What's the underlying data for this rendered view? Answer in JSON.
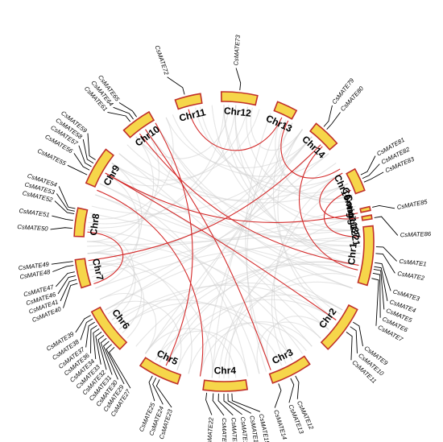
{
  "colors": {
    "chromosome_fill": "#f6d64a",
    "chromosome_border": "#c0302a",
    "collinear_gray": "#cfcfcf",
    "mate_pair_red": "#d42a2a"
  },
  "chromosomes": [
    {
      "label": "Chr1",
      "start": 84,
      "end": 107
    },
    {
      "label": "Chr2",
      "start": 117,
      "end": 136
    },
    {
      "label": "Chr3",
      "start": 145,
      "end": 161
    },
    {
      "label": "Chr4",
      "start": 171,
      "end": 188
    },
    {
      "label": "Chr5",
      "start": 198,
      "end": 214
    },
    {
      "label": "Chr6",
      "start": 224,
      "end": 242
    },
    {
      "label": "Chr7",
      "start": 252,
      "end": 263
    },
    {
      "label": "Chr8",
      "start": 272,
      "end": 283
    },
    {
      "label": "Chr9",
      "start": 293,
      "end": 308
    },
    {
      "label": "Chr10",
      "start": 318,
      "end": 330
    },
    {
      "label": "Chr11",
      "start": 341,
      "end": 351
    },
    {
      "label": "Chr12",
      "start": 359,
      "end": 373
    },
    {
      "label": "Chr13",
      "start": 381,
      "end": 389
    },
    {
      "label": "Chr14",
      "start": 398,
      "end": 409
    },
    {
      "label": "Chr15",
      "start": 421,
      "end": 430
    },
    {
      "label": "Contig1187",
      "start": 436.5,
      "end": 438
    },
    {
      "label": "Contig1221",
      "start": 439.8,
      "end": 441.3
    }
  ],
  "genes": [
    {
      "name": "CsMATE1",
      "angle": 92,
      "target": 96.5
    },
    {
      "name": "CsMATE2",
      "angle": 94.5,
      "target": 100.5
    },
    {
      "name": "CsMATE3",
      "angle": 98,
      "target": 106.5
    },
    {
      "name": "CsMATE4",
      "angle": 99.5,
      "target": 110
    },
    {
      "name": "CsMATE5",
      "angle": 100.5,
      "target": 113
    },
    {
      "name": "CsMATE6",
      "angle": 102,
      "target": 116
    },
    {
      "name": "CsMATE7",
      "angle": 104,
      "target": 119
    },
    {
      "name": "CsMATE9",
      "angle": 122,
      "target": 127
    },
    {
      "name": "CsMATE10",
      "angle": 124,
      "target": 130
    },
    {
      "name": "CsMATE11",
      "angle": 126.5,
      "target": 133
    },
    {
      "name": "CsMATE12",
      "angle": 152,
      "target": 155
    },
    {
      "name": "CsMATE13",
      "angle": 154,
      "target": 158
    },
    {
      "name": "CsMATE14",
      "angle": 159,
      "target": 163
    },
    {
      "name": "CsMATE15",
      "angle": 177,
      "target": 168
    },
    {
      "name": "CsMATE16",
      "angle": 178.5,
      "target": 171
    },
    {
      "name": "CsMATE17",
      "angle": 180,
      "target": 174
    },
    {
      "name": "CsMATE20",
      "angle": 182,
      "target": 177
    },
    {
      "name": "CsMATE21",
      "angle": 184,
      "target": 180
    },
    {
      "name": "CsMATE22",
      "angle": 186.5,
      "target": 184
    },
    {
      "name": "CsMATE23",
      "angle": 205,
      "target": 197.5
    },
    {
      "name": "CsMATE24",
      "angle": 206.5,
      "target": 200.5
    },
    {
      "name": "CsMATE25",
      "angle": 208,
      "target": 203.5
    },
    {
      "name": "CsMATE27",
      "angle": 226,
      "target": 212.5
    },
    {
      "name": "CsMATE29",
      "angle": 227.5,
      "target": 215
    },
    {
      "name": "CsMATE30",
      "angle": 229,
      "target": 217.5
    },
    {
      "name": "CsMATE31",
      "angle": 230.5,
      "target": 220
    },
    {
      "name": "CsMATE32",
      "angle": 232,
      "target": 222.5
    },
    {
      "name": "CsMATE33",
      "angle": 233.5,
      "target": 225
    },
    {
      "name": "CsMATE34",
      "angle": 235,
      "target": 227.5
    },
    {
      "name": "CsMATE36",
      "angle": 236.5,
      "target": 230
    },
    {
      "name": "CsMATE37",
      "angle": 238,
      "target": 232.5
    },
    {
      "name": "CsMATE38",
      "angle": 239.5,
      "target": 235.5
    },
    {
      "name": "CsMATE39",
      "angle": 241,
      "target": 238.5
    },
    {
      "name": "CsMATE40",
      "angle": 254,
      "target": 247.5
    },
    {
      "name": "CsMATE41",
      "angle": 255.5,
      "target": 250
    },
    {
      "name": "CsMATE46",
      "angle": 257,
      "target": 252.5
    },
    {
      "name": "CsMATE47",
      "angle": 258.5,
      "target": 255
    },
    {
      "name": "CsMATE48",
      "angle": 261,
      "target": 260
    },
    {
      "name": "CsMATE49",
      "angle": 262.5,
      "target": 262.5
    },
    {
      "name": "CsMATE50",
      "angle": 275,
      "target": 274
    },
    {
      "name": "CsMATE51",
      "angle": 278,
      "target": 278.5
    },
    {
      "name": "CsMATE52",
      "angle": 280.5,
      "target": 283.5
    },
    {
      "name": "CsMATE53",
      "angle": 281.5,
      "target": 286
    },
    {
      "name": "CsMATE54",
      "angle": 282.5,
      "target": 288.5
    },
    {
      "name": "CsMATE55",
      "angle": 296,
      "target": 296
    },
    {
      "name": "CsMATE56",
      "angle": 298,
      "target": 300.5
    },
    {
      "name": "CsMATE57",
      "angle": 299.5,
      "target": 303.5
    },
    {
      "name": "CsMATE58",
      "angle": 301,
      "target": 306
    },
    {
      "name": "CsMATE59",
      "angle": 302.5,
      "target": 308.5
    },
    {
      "name": "CsMATE61",
      "angle": 322,
      "target": 318
    },
    {
      "name": "CsMATE64",
      "angle": 323.5,
      "target": 320.5
    },
    {
      "name": "CsMATE65",
      "angle": 325,
      "target": 323
    },
    {
      "name": "CsMATE72",
      "angle": 345,
      "target": 341
    },
    {
      "name": "CsMATE73",
      "angle": 366,
      "target": 364
    },
    {
      "name": "CsMATE79",
      "angle": 401,
      "target": 398.5
    },
    {
      "name": "CsMATE80",
      "angle": 402.5,
      "target": 402
    },
    {
      "name": "CsMATE81",
      "angle": 424,
      "target": 420.5
    },
    {
      "name": "CsMATE82",
      "angle": 425.5,
      "target": 423.5
    },
    {
      "name": "CsMATE83",
      "angle": 427,
      "target": 426.5
    },
    {
      "name": "CsMATE85",
      "angle": 437,
      "target": 439
    },
    {
      "name": "CsMATE86",
      "angle": 441,
      "target": 448
    }
  ],
  "red_links": [
    [
      428,
      448
    ],
    [
      345,
      385
    ],
    [
      300,
      485
    ],
    [
      405,
      262
    ],
    [
      325,
      520
    ],
    [
      292,
      550
    ],
    [
      438,
      300
    ],
    [
      440,
      420
    ],
    [
      322,
      460
    ],
    [
      330,
      565
    ],
    [
      274,
      252
    ],
    [
      388,
      418
    ],
    [
      406,
      462
    ]
  ],
  "gray_links": [
    [
      370,
      430
    ],
    [
      372,
      395
    ],
    [
      290,
      470
    ],
    [
      295,
      480
    ],
    [
      282,
      465
    ],
    [
      325,
      445
    ],
    [
      330,
      455
    ],
    [
      335,
      400
    ],
    [
      338,
      410
    ],
    [
      265,
      440
    ],
    [
      268,
      445
    ],
    [
      255,
      435
    ],
    [
      310,
      420
    ],
    [
      315,
      425
    ],
    [
      285,
      400
    ],
    [
      230,
      480
    ],
    [
      233,
      485
    ],
    [
      205,
      455
    ],
    [
      208,
      460
    ],
    [
      178,
      440
    ],
    [
      182,
      448
    ],
    [
      150,
      420
    ],
    [
      153,
      425
    ],
    [
      122,
      390
    ],
    [
      125,
      395
    ],
    [
      95,
      355
    ],
    [
      97,
      360
    ],
    [
      100,
      365
    ],
    [
      160,
      380
    ],
    [
      162,
      385
    ],
    [
      185,
      390
    ],
    [
      190,
      395
    ],
    [
      210,
      400
    ],
    [
      215,
      405
    ],
    [
      240,
      410
    ],
    [
      245,
      415
    ],
    [
      258,
      395
    ],
    [
      260,
      400
    ],
    [
      276,
      360
    ],
    [
      278,
      365
    ],
    [
      300,
      370
    ],
    [
      305,
      375
    ],
    [
      320,
      362
    ],
    [
      90,
      300
    ],
    [
      92,
      305
    ],
    [
      105,
      320
    ],
    [
      110,
      330
    ],
    [
      130,
      300
    ],
    [
      135,
      310
    ],
    [
      140,
      270
    ],
    [
      145,
      275
    ],
    [
      165,
      290
    ],
    [
      170,
      295
    ],
    [
      185,
      260
    ],
    [
      195,
      265
    ],
    [
      200,
      240
    ],
    [
      215,
      245
    ],
    [
      235,
      270
    ],
    [
      238,
      275
    ],
    [
      250,
      300
    ],
    [
      253,
      305
    ],
    [
      265,
      320
    ],
    [
      270,
      325
    ],
    [
      280,
      335
    ],
    [
      88,
      240
    ],
    [
      92,
      250
    ],
    [
      100,
      215
    ],
    [
      102,
      220
    ],
    [
      120,
      200
    ],
    [
      125,
      205
    ],
    [
      150,
      230
    ],
    [
      155,
      235
    ],
    [
      170,
      210
    ],
    [
      175,
      215
    ],
    [
      225,
      260
    ],
    [
      228,
      265
    ],
    [
      105,
      180
    ],
    [
      110,
      185
    ],
    [
      140,
      190
    ],
    [
      143,
      195
    ],
    [
      130,
      160
    ],
    [
      135,
      165
    ],
    [
      360,
      440
    ],
    [
      365,
      445
    ],
    [
      348,
      420
    ],
    [
      350,
      425
    ],
    [
      385,
      430
    ],
    [
      387,
      432
    ]
  ]
}
